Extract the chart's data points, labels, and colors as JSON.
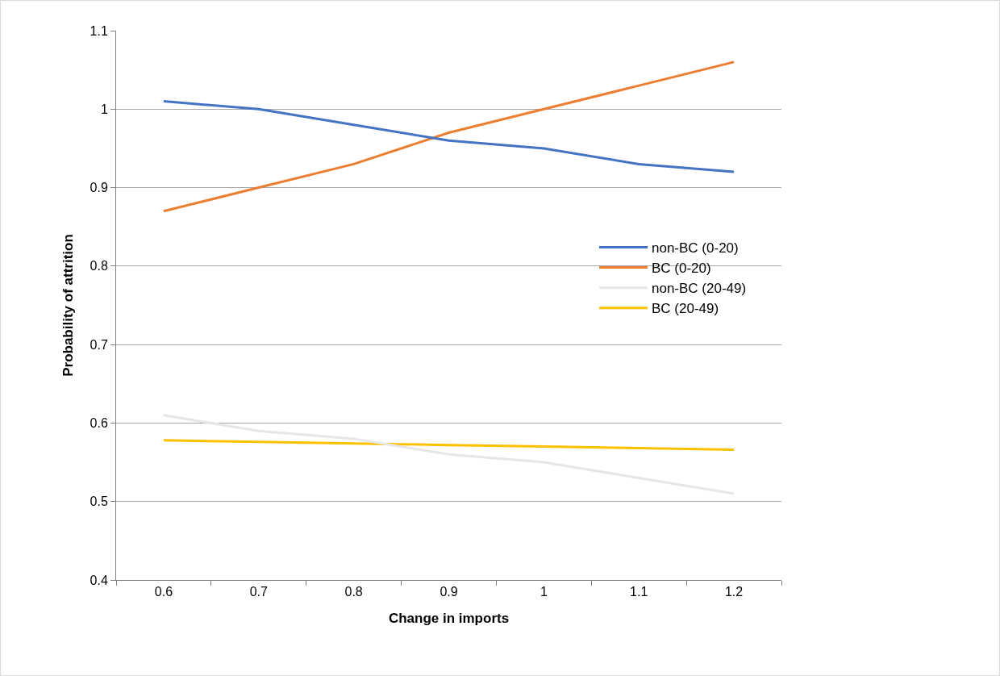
{
  "chart_data": {
    "type": "line",
    "xlabel": "Change in imports",
    "ylabel": "Probability of attrition",
    "categories": [
      "0.6",
      "0.7",
      "0.8",
      "0.9",
      "1",
      "1.1",
      "1.2"
    ],
    "series": [
      {
        "name": "non-BC (0-20)",
        "color": "#4472c4",
        "values": [
          1.01,
          1.0,
          0.98,
          0.96,
          0.95,
          0.93,
          0.92
        ]
      },
      {
        "name": "BC (0-20)",
        "color": "#ed7d31",
        "values": [
          0.87,
          0.9,
          0.93,
          0.97,
          1.0,
          1.03,
          1.06
        ]
      },
      {
        "name": "non-BC (20-49)",
        "color": "#e7e6e6",
        "values": [
          0.61,
          0.59,
          0.58,
          0.56,
          0.55,
          0.53,
          0.51
        ]
      },
      {
        "name": "BC (20-49)",
        "color": "#ffc000",
        "values": [
          0.578,
          0.576,
          0.574,
          0.572,
          0.57,
          0.568,
          0.566
        ]
      }
    ],
    "ylim": [
      0.4,
      1.1
    ],
    "yticks": [
      0.4,
      0.5,
      0.6,
      0.7,
      0.8,
      0.9,
      1,
      1.1
    ],
    "grid": "y",
    "legend": "right",
    "marker": "none",
    "line_style": "solid"
  }
}
